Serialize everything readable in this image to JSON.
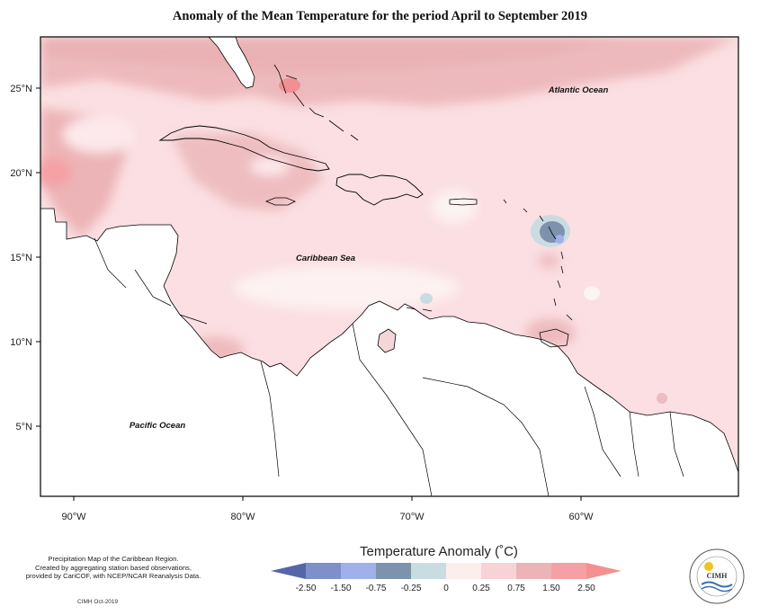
{
  "title": "Anomaly of the Mean Temperature for the period April to September 2019",
  "map": {
    "lat_ticks": [
      "25°N",
      "20°N",
      "15°N",
      "10°N",
      "5°N"
    ],
    "lon_ticks": [
      "90°W",
      "80°W",
      "70°W",
      "60°W"
    ],
    "labels": {
      "atlantic": "Atlantic Ocean",
      "caribbean": "Caribbean Sea",
      "pacific": "Pacific Ocean"
    }
  },
  "notes": {
    "line1": "Precipitation Map of the Caribbean Region.",
    "line2": "Created by aggregating station based observations,",
    "line3": "provided by CariCOF, with NCEP/NCAR Reanalysis Data.",
    "credit": "CIMH Oct-2019"
  },
  "legend": {
    "title": "Temperature Anomaly (˚C)",
    "bins": [
      {
        "color": "#5466a8"
      },
      {
        "color": "#7f8fca"
      },
      {
        "color": "#9fb0ea"
      },
      {
        "color": "#7d92ad"
      },
      {
        "color": "#c9dce2"
      },
      {
        "color": "#fdeeee"
      },
      {
        "color": "#f8d3d6"
      },
      {
        "color": "#ecb4b6"
      },
      {
        "color": "#f4a0a4"
      },
      {
        "color": "#f59090"
      }
    ],
    "tick_labels": [
      "-2.50",
      "-1.50",
      "-0.75",
      "-0.25",
      "0",
      "0.25",
      "0.75",
      "1.50",
      "2.50"
    ]
  },
  "logo": {
    "name": "CIMH"
  }
}
